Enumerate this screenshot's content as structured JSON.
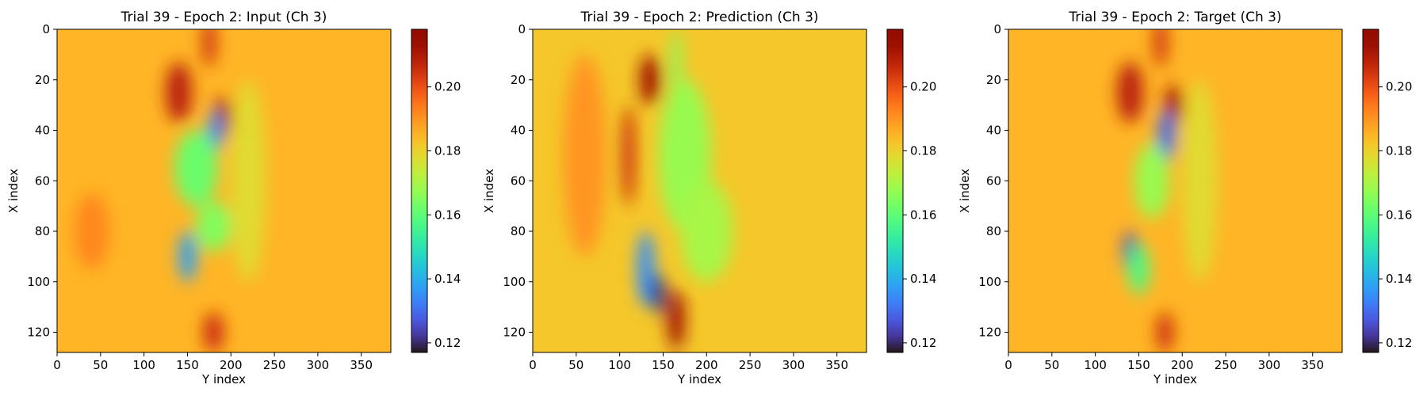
{
  "colorbar": {
    "vmin": 0.117,
    "vmax": 0.218,
    "ticks": [
      "0.12",
      "0.14",
      "0.16",
      "0.18",
      "0.20"
    ],
    "tick_values": [
      0.12,
      0.14,
      0.16,
      0.18,
      0.2
    ],
    "colormap": "turbo"
  },
  "chart_data": [
    {
      "type": "heatmap",
      "title": "Trial 39 - Epoch 2: Input (Ch 3)",
      "xlabel": "Y index",
      "ylabel": "X index",
      "xlim": [
        0,
        384
      ],
      "ylim": [
        128,
        0
      ],
      "xticks": [
        "0",
        "50",
        "100",
        "150",
        "200",
        "250",
        "300",
        "350"
      ],
      "yticks": [
        "0",
        "20",
        "40",
        "60",
        "80",
        "100",
        "120"
      ],
      "background_value": 0.185,
      "features": [
        {
          "y": 175,
          "x": 5,
          "sy": 8,
          "sx": 10,
          "v": 0.205
        },
        {
          "y": 140,
          "x": 25,
          "sy": 15,
          "sx": 12,
          "v": 0.208
        },
        {
          "y": 190,
          "x": 35,
          "sy": 10,
          "sx": 8,
          "v": 0.212
        },
        {
          "y": 182,
          "x": 40,
          "sy": 8,
          "sx": 8,
          "v": 0.135
        },
        {
          "y": 160,
          "x": 55,
          "sy": 25,
          "sx": 15,
          "v": 0.162
        },
        {
          "y": 180,
          "x": 78,
          "sy": 20,
          "sx": 10,
          "v": 0.165
        },
        {
          "y": 150,
          "x": 90,
          "sy": 10,
          "sx": 10,
          "v": 0.138
        },
        {
          "y": 180,
          "x": 120,
          "sy": 12,
          "sx": 8,
          "v": 0.205
        },
        {
          "y": 220,
          "x": 60,
          "sy": 20,
          "sx": 40,
          "v": 0.178
        },
        {
          "y": 40,
          "x": 80,
          "sy": 20,
          "sx": 15,
          "v": 0.192
        }
      ]
    },
    {
      "type": "heatmap",
      "title": "Trial 39 - Epoch 2: Prediction (Ch 3)",
      "xlabel": "Y index",
      "ylabel": "X index",
      "xlim": [
        0,
        384
      ],
      "ylim": [
        128,
        0
      ],
      "xticks": [
        "0",
        "50",
        "100",
        "150",
        "200",
        "250",
        "300",
        "350"
      ],
      "yticks": [
        "0",
        "20",
        "40",
        "60",
        "80",
        "100",
        "120"
      ],
      "background_value": 0.182,
      "features": [
        {
          "y": 135,
          "x": 20,
          "sy": 12,
          "sx": 10,
          "v": 0.212
        },
        {
          "y": 110,
          "x": 50,
          "sy": 8,
          "sx": 20,
          "v": 0.205
        },
        {
          "y": 165,
          "x": 15,
          "sy": 6,
          "sx": 15,
          "v": 0.165
        },
        {
          "y": 175,
          "x": 50,
          "sy": 30,
          "sx": 30,
          "v": 0.168
        },
        {
          "y": 130,
          "x": 95,
          "sy": 10,
          "sx": 15,
          "v": 0.135
        },
        {
          "y": 145,
          "x": 105,
          "sy": 8,
          "sx": 8,
          "v": 0.12
        },
        {
          "y": 165,
          "x": 115,
          "sy": 10,
          "sx": 12,
          "v": 0.212
        },
        {
          "y": 200,
          "x": 80,
          "sy": 30,
          "sx": 20,
          "v": 0.17
        },
        {
          "y": 60,
          "x": 50,
          "sy": 25,
          "sx": 40,
          "v": 0.19
        }
      ]
    },
    {
      "type": "heatmap",
      "title": "Trial 39 - Epoch 2: Target (Ch 3)",
      "xlabel": "Y index",
      "ylabel": "X index",
      "xlim": [
        0,
        384
      ],
      "ylim": [
        128,
        0
      ],
      "xticks": [
        "0",
        "50",
        "100",
        "150",
        "200",
        "250",
        "300",
        "350"
      ],
      "yticks": [
        "0",
        "20",
        "40",
        "60",
        "80",
        "100",
        "120"
      ],
      "background_value": 0.185,
      "features": [
        {
          "y": 175,
          "x": 5,
          "sy": 8,
          "sx": 10,
          "v": 0.205
        },
        {
          "y": 140,
          "x": 25,
          "sy": 15,
          "sx": 12,
          "v": 0.208
        },
        {
          "y": 190,
          "x": 30,
          "sy": 10,
          "sx": 8,
          "v": 0.212
        },
        {
          "y": 182,
          "x": 42,
          "sy": 10,
          "sx": 10,
          "v": 0.13
        },
        {
          "y": 165,
          "x": 60,
          "sy": 20,
          "sx": 15,
          "v": 0.168
        },
        {
          "y": 140,
          "x": 88,
          "sy": 8,
          "sx": 8,
          "v": 0.125
        },
        {
          "y": 150,
          "x": 95,
          "sy": 12,
          "sx": 10,
          "v": 0.158
        },
        {
          "y": 180,
          "x": 120,
          "sy": 10,
          "sx": 8,
          "v": 0.205
        },
        {
          "y": 220,
          "x": 60,
          "sy": 20,
          "sx": 40,
          "v": 0.178
        }
      ]
    }
  ]
}
